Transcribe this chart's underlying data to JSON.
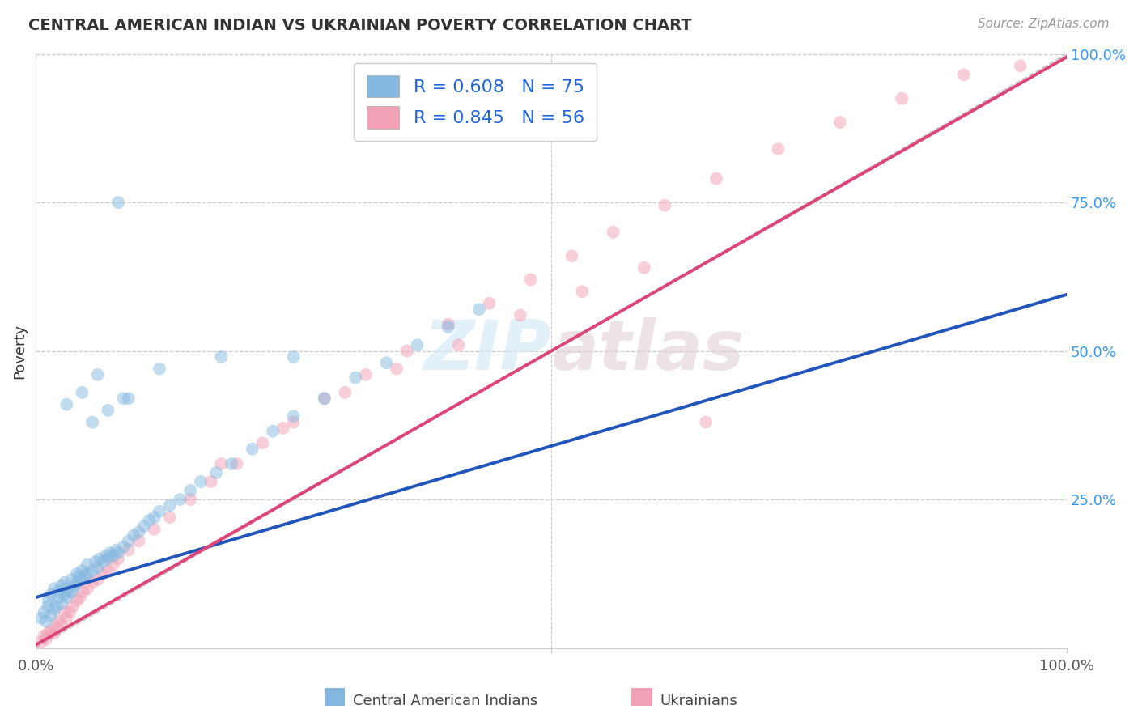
{
  "title": "CENTRAL AMERICAN INDIAN VS UKRAINIAN POVERTY CORRELATION CHART",
  "source": "Source: ZipAtlas.com",
  "ylabel": "Poverty",
  "xlim": [
    0,
    1
  ],
  "ylim": [
    0,
    1
  ],
  "xtick_labels": [
    "0.0%",
    "100.0%"
  ],
  "ytick_labels_right": [
    "25.0%",
    "50.0%",
    "75.0%",
    "100.0%"
  ],
  "grid_color": "#cccccc",
  "background_color": "#ffffff",
  "legend1_label": "R = 0.608   N = 75",
  "legend2_label": "R = 0.845   N = 56",
  "series1_color": "#85b8e0",
  "series2_color": "#f2a0b5",
  "line1_color": "#2255bb",
  "line2_color": "#dd4477",
  "diag_color": "#bbbbbb",
  "scatter_alpha": 0.5,
  "scatter_size": 130,
  "blue_x": [
    0.005,
    0.008,
    0.01,
    0.012,
    0.012,
    0.015,
    0.015,
    0.018,
    0.018,
    0.02,
    0.022,
    0.022,
    0.025,
    0.025,
    0.028,
    0.028,
    0.03,
    0.03,
    0.032,
    0.035,
    0.035,
    0.038,
    0.04,
    0.04,
    0.042,
    0.045,
    0.045,
    0.048,
    0.05,
    0.05,
    0.055,
    0.058,
    0.06,
    0.062,
    0.065,
    0.068,
    0.07,
    0.072,
    0.075,
    0.078,
    0.08,
    0.085,
    0.09,
    0.095,
    0.1,
    0.105,
    0.11,
    0.115,
    0.12,
    0.13,
    0.14,
    0.15,
    0.16,
    0.175,
    0.19,
    0.21,
    0.23,
    0.25,
    0.28,
    0.31,
    0.34,
    0.37,
    0.4,
    0.43,
    0.08,
    0.25,
    0.045,
    0.03,
    0.06,
    0.09,
    0.12,
    0.18,
    0.055,
    0.07,
    0.085
  ],
  "blue_y": [
    0.05,
    0.06,
    0.045,
    0.07,
    0.08,
    0.055,
    0.09,
    0.065,
    0.1,
    0.07,
    0.085,
    0.095,
    0.075,
    0.105,
    0.09,
    0.11,
    0.085,
    0.1,
    0.095,
    0.095,
    0.115,
    0.105,
    0.11,
    0.125,
    0.12,
    0.115,
    0.13,
    0.12,
    0.125,
    0.14,
    0.13,
    0.145,
    0.135,
    0.15,
    0.145,
    0.155,
    0.15,
    0.16,
    0.155,
    0.165,
    0.16,
    0.17,
    0.18,
    0.19,
    0.195,
    0.205,
    0.215,
    0.22,
    0.23,
    0.24,
    0.25,
    0.265,
    0.28,
    0.295,
    0.31,
    0.335,
    0.365,
    0.39,
    0.42,
    0.455,
    0.48,
    0.51,
    0.54,
    0.57,
    0.75,
    0.49,
    0.43,
    0.41,
    0.46,
    0.42,
    0.47,
    0.49,
    0.38,
    0.4,
    0.42
  ],
  "pink_x": [
    0.005,
    0.008,
    0.01,
    0.012,
    0.015,
    0.018,
    0.02,
    0.022,
    0.025,
    0.028,
    0.03,
    0.033,
    0.036,
    0.04,
    0.043,
    0.046,
    0.05,
    0.055,
    0.06,
    0.065,
    0.07,
    0.075,
    0.08,
    0.09,
    0.1,
    0.115,
    0.13,
    0.15,
    0.17,
    0.195,
    0.22,
    0.25,
    0.28,
    0.32,
    0.36,
    0.4,
    0.44,
    0.48,
    0.52,
    0.56,
    0.61,
    0.66,
    0.72,
    0.78,
    0.84,
    0.9,
    0.955,
    0.18,
    0.24,
    0.3,
    0.35,
    0.41,
    0.47,
    0.53,
    0.59,
    0.65
  ],
  "pink_y": [
    0.01,
    0.02,
    0.015,
    0.025,
    0.03,
    0.025,
    0.035,
    0.045,
    0.04,
    0.06,
    0.05,
    0.06,
    0.07,
    0.08,
    0.085,
    0.095,
    0.1,
    0.11,
    0.115,
    0.125,
    0.13,
    0.14,
    0.15,
    0.165,
    0.18,
    0.2,
    0.22,
    0.25,
    0.28,
    0.31,
    0.345,
    0.38,
    0.42,
    0.46,
    0.5,
    0.545,
    0.58,
    0.62,
    0.66,
    0.7,
    0.745,
    0.79,
    0.84,
    0.885,
    0.925,
    0.965,
    0.98,
    0.31,
    0.37,
    0.43,
    0.47,
    0.51,
    0.56,
    0.6,
    0.64,
    0.38
  ],
  "blue_line": [
    0.0,
    1.0,
    0.085,
    0.595
  ],
  "pink_line": [
    0.0,
    1.0,
    0.005,
    0.995
  ]
}
